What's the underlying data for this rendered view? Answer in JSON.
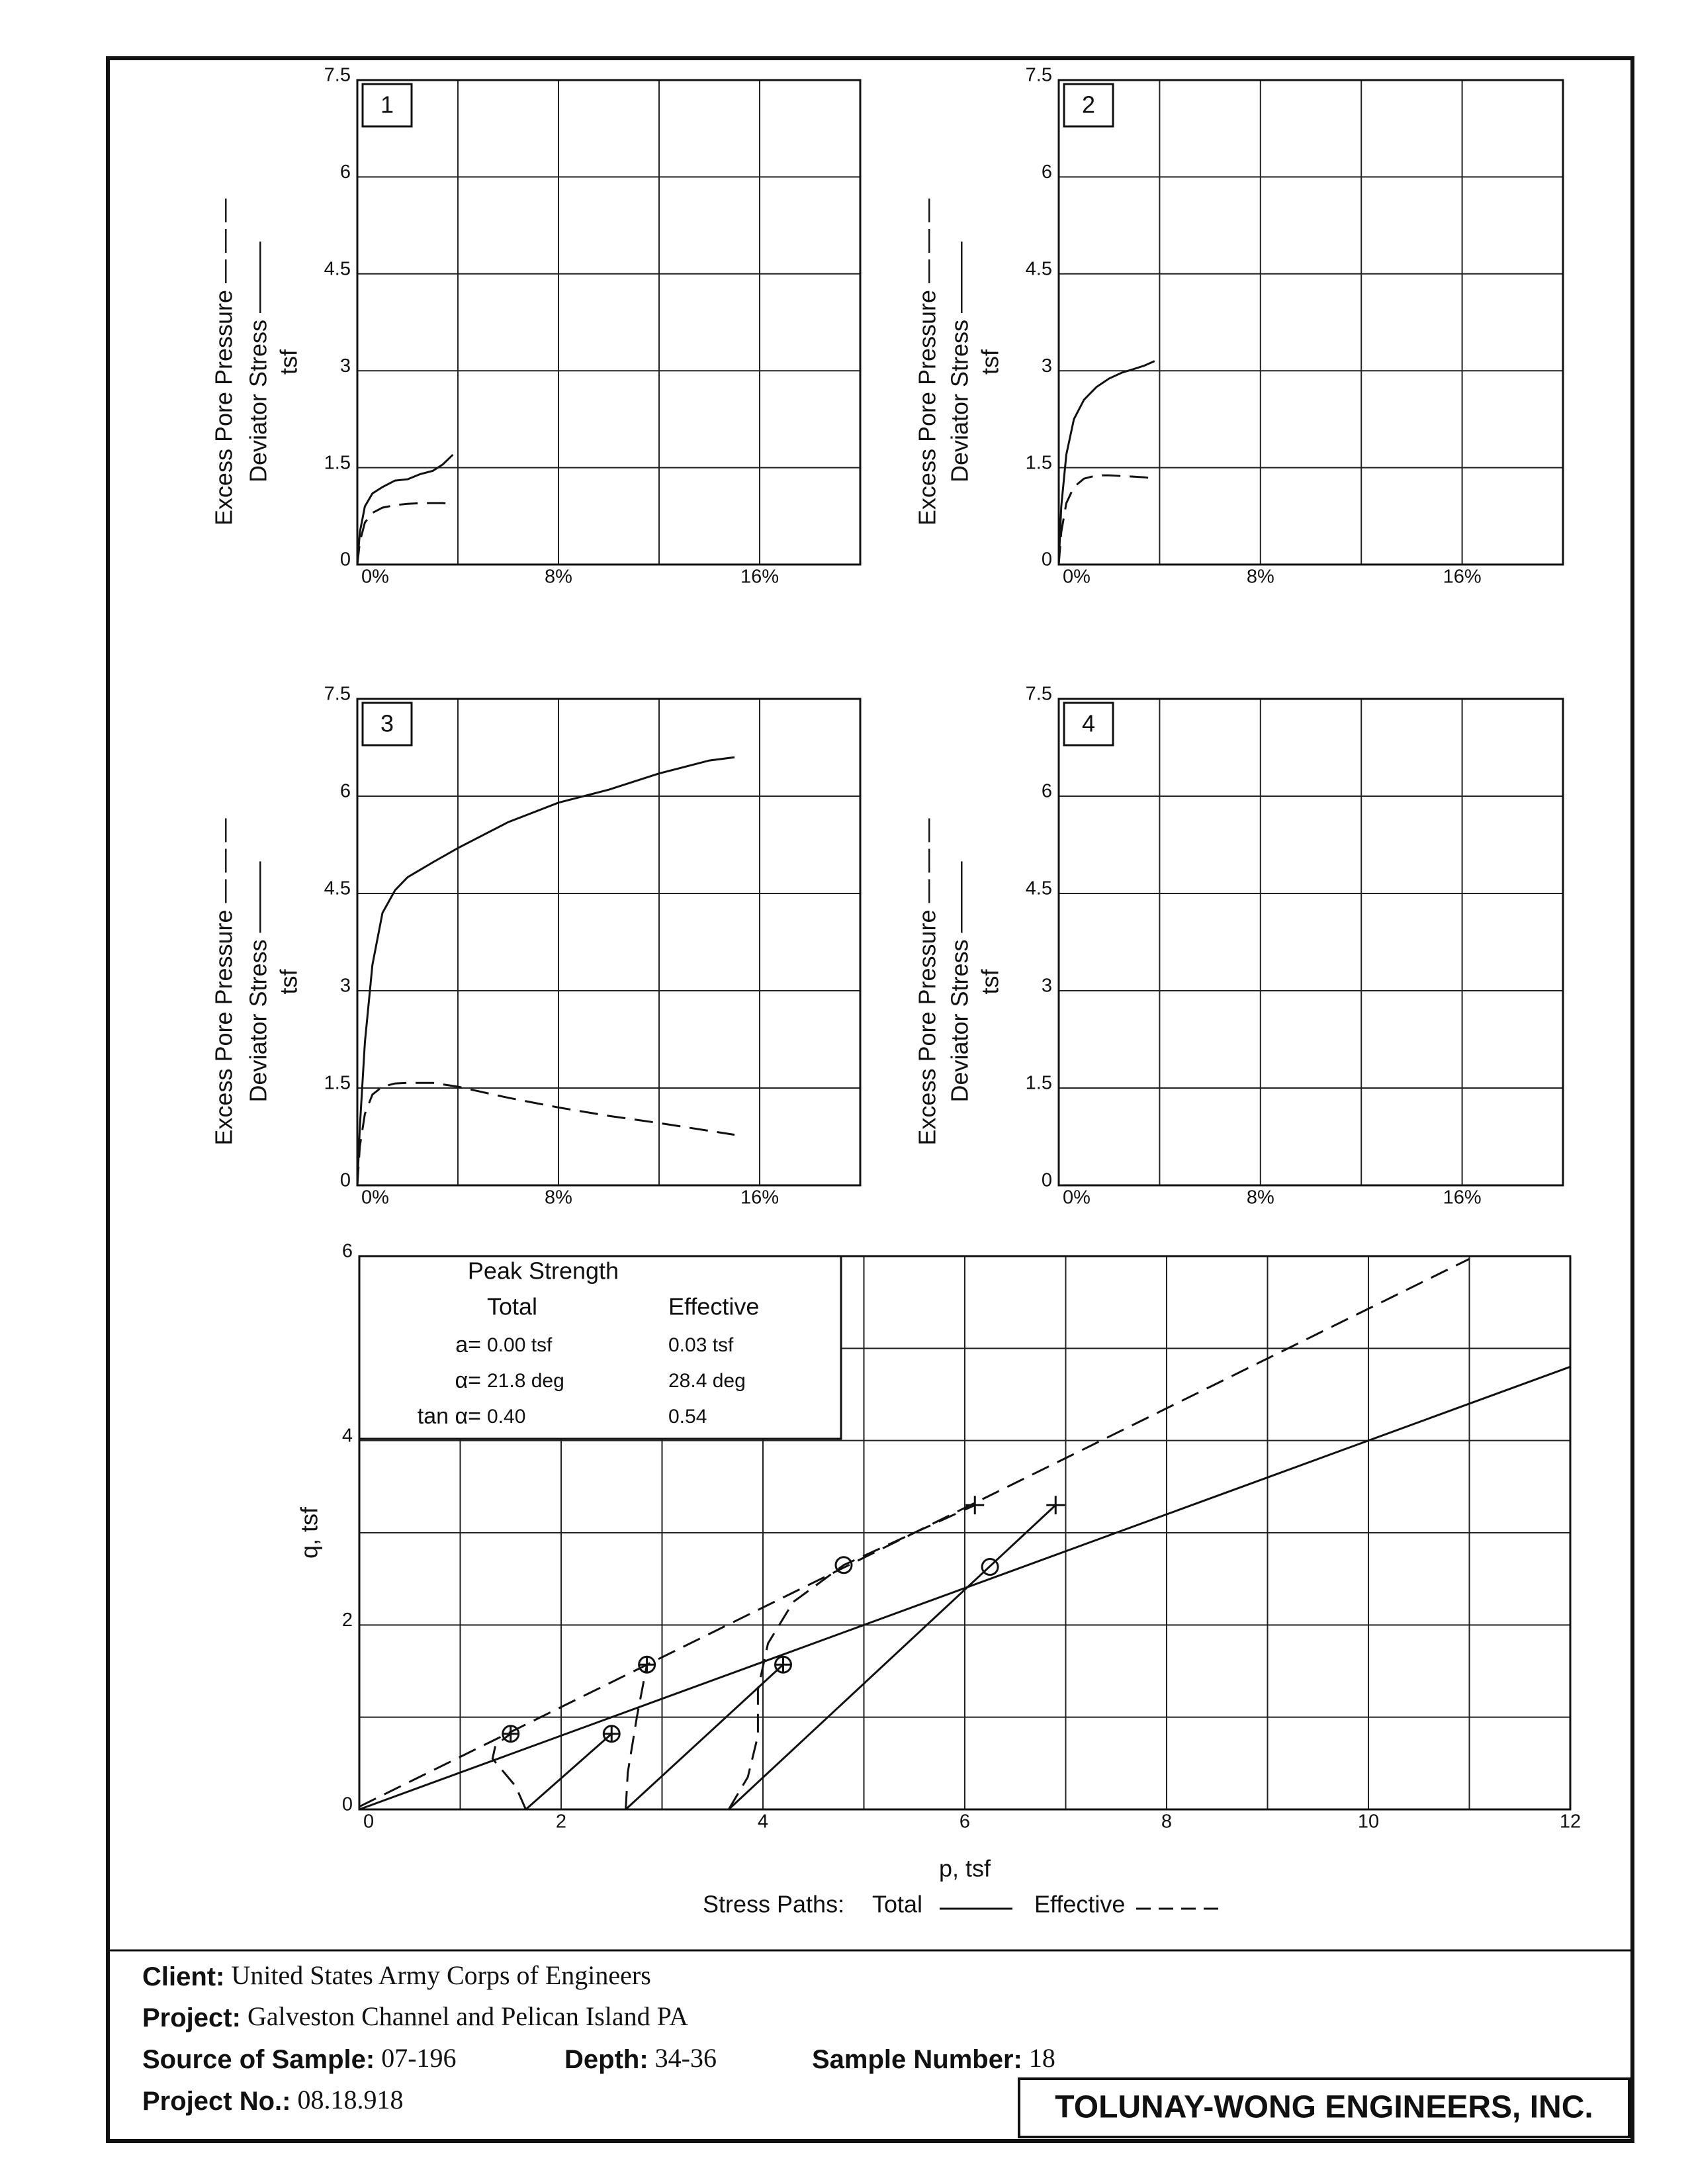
{
  "chart_data": [
    {
      "type": "line",
      "label": "1",
      "y_title": [
        "Excess Pore Pressure — — —",
        "Deviator Stress ———",
        "tsf"
      ],
      "xlim": [
        0,
        20
      ],
      "ylim": [
        0,
        7.5
      ],
      "xticks": [
        {
          "value": 0,
          "label": "0%"
        },
        {
          "value": 8,
          "label": "8%"
        },
        {
          "value": 16,
          "label": "16%"
        }
      ],
      "xgrid": [
        4,
        8,
        12,
        16
      ],
      "yticks": [
        0,
        1.5,
        3,
        4.5,
        6,
        7.5
      ],
      "x": [
        0,
        0.1,
        0.3,
        0.6,
        1,
        1.5,
        2,
        2.5,
        3,
        3.4,
        3.8
      ],
      "series": [
        {
          "style": "solid",
          "values": [
            0,
            0.5,
            0.9,
            1.1,
            1.2,
            1.3,
            1.32,
            1.4,
            1.45,
            1.55,
            1.7
          ]
        },
        {
          "style": "dashed",
          "values": [
            0,
            0.35,
            0.65,
            0.8,
            0.88,
            0.92,
            0.94,
            0.95,
            0.95,
            0.95,
            0.94
          ]
        }
      ]
    },
    {
      "type": "line",
      "label": "2",
      "y_title": [
        "Excess Pore Pressure — — —",
        "Deviator Stress ———",
        "tsf"
      ],
      "xlim": [
        0,
        20
      ],
      "ylim": [
        0,
        7.5
      ],
      "xticks": [
        {
          "value": 0,
          "label": "0%"
        },
        {
          "value": 8,
          "label": "8%"
        },
        {
          "value": 16,
          "label": "16%"
        }
      ],
      "xgrid": [
        4,
        8,
        12,
        16
      ],
      "yticks": [
        0,
        1.5,
        3,
        4.5,
        6,
        7.5
      ],
      "x": [
        0,
        0.1,
        0.3,
        0.6,
        1,
        1.5,
        2,
        2.5,
        3,
        3.4,
        3.8
      ],
      "series": [
        {
          "style": "solid",
          "values": [
            0,
            0.9,
            1.7,
            2.25,
            2.55,
            2.75,
            2.88,
            2.97,
            3.03,
            3.08,
            3.15
          ]
        },
        {
          "style": "dashed",
          "values": [
            0,
            0.5,
            0.95,
            1.2,
            1.33,
            1.38,
            1.38,
            1.37,
            1.36,
            1.35,
            1.33
          ]
        }
      ]
    },
    {
      "type": "line",
      "label": "3",
      "y_title": [
        "Excess Pore Pressure — — —",
        "Deviator Stress ———",
        "tsf"
      ],
      "xlim": [
        0,
        20
      ],
      "ylim": [
        0,
        7.5
      ],
      "xticks": [
        {
          "value": 0,
          "label": "0%"
        },
        {
          "value": 8,
          "label": "8%"
        },
        {
          "value": 16,
          "label": "16%"
        }
      ],
      "xgrid": [
        4,
        8,
        12,
        16
      ],
      "yticks": [
        0,
        1.5,
        3,
        4.5,
        6,
        7.5
      ],
      "x": [
        0,
        0.1,
        0.3,
        0.6,
        1,
        1.5,
        2,
        3,
        4,
        6,
        8,
        10,
        12,
        14,
        15
      ],
      "series": [
        {
          "style": "solid",
          "values": [
            0,
            0.9,
            2.2,
            3.4,
            4.2,
            4.55,
            4.75,
            4.98,
            5.2,
            5.6,
            5.9,
            6.1,
            6.35,
            6.55,
            6.6
          ]
        },
        {
          "style": "dashed",
          "values": [
            0,
            0.6,
            1.1,
            1.4,
            1.52,
            1.57,
            1.58,
            1.58,
            1.52,
            1.35,
            1.2,
            1.07,
            0.96,
            0.84,
            0.78
          ]
        }
      ]
    },
    {
      "type": "line",
      "label": "4",
      "y_title": [
        "Excess Pore Pressure — — —",
        "Deviator Stress ———",
        "tsf"
      ],
      "xlim": [
        0,
        20
      ],
      "ylim": [
        0,
        7.5
      ],
      "xticks": [
        {
          "value": 0,
          "label": "0%"
        },
        {
          "value": 8,
          "label": "8%"
        },
        {
          "value": 16,
          "label": "16%"
        }
      ],
      "xgrid": [
        4,
        8,
        12,
        16
      ],
      "yticks": [
        0,
        1.5,
        3,
        4.5,
        6,
        7.5
      ],
      "x": [],
      "series": []
    },
    {
      "type": "line",
      "y_title": [
        "q, tsf"
      ],
      "x_title": "p, tsf",
      "xlim": [
        0,
        12
      ],
      "ylim": [
        0,
        6
      ],
      "xticks": [
        0,
        2,
        4,
        6,
        8,
        10,
        12
      ],
      "yticks": [
        0,
        2,
        4,
        6
      ],
      "xgrid": [
        1,
        2,
        3,
        4,
        5,
        6,
        7,
        8,
        9,
        10,
        11
      ],
      "ygrid": [
        1,
        2,
        3,
        4,
        5
      ],
      "legend_title": "Stress Paths:",
      "legend": [
        {
          "name": "Total",
          "style": "solid"
        },
        {
          "name": "Effective",
          "style": "dashed"
        }
      ],
      "table": {
        "title": "Peak Strength",
        "columns": [
          "Total",
          "Effective"
        ],
        "rows": [
          {
            "label": "a=",
            "values": [
              "0.00 tsf",
              "0.03 tsf"
            ]
          },
          {
            "label": "α=",
            "values": [
              "21.8 deg",
              "28.4 deg"
            ]
          },
          {
            "label": "tan α=",
            "values": [
              "0.40",
              "0.54"
            ]
          }
        ]
      },
      "series": [
        {
          "style": "solid",
          "x": [
            0,
            12
          ],
          "values": [
            0,
            4.8
          ]
        },
        {
          "style": "dashed",
          "x": [
            0,
            11
          ],
          "values": [
            0.03,
            5.97
          ]
        },
        {
          "style": "solid",
          "x": [
            1.65,
            2.5
          ],
          "values": [
            0,
            0.82
          ]
        },
        {
          "style": "solid",
          "x": [
            2.64,
            4.2
          ],
          "values": [
            0,
            1.57
          ]
        },
        {
          "style": "solid",
          "x": [
            3.66,
            6.9
          ],
          "values": [
            0,
            3.3
          ]
        },
        {
          "style": "dashed",
          "x": [
            1.65,
            1.55,
            1.32,
            1.35,
            1.5
          ],
          "values": [
            0,
            0.25,
            0.55,
            0.7,
            0.82
          ]
        },
        {
          "style": "dashed",
          "x": [
            2.64,
            2.66,
            2.75,
            2.85
          ],
          "values": [
            0,
            0.4,
            1.0,
            1.57
          ]
        },
        {
          "style": "dashed",
          "x": [
            3.66,
            3.85,
            3.95,
            3.95,
            4.05,
            4.3,
            4.8,
            5.5,
            6.1
          ],
          "values": [
            0,
            0.35,
            0.8,
            1.3,
            1.8,
            2.25,
            2.65,
            3.0,
            3.3
          ]
        },
        {
          "marker": "circle-plus",
          "x": [
            1.5,
            2.5,
            2.85,
            4.2
          ],
          "values": [
            0.82,
            0.82,
            1.57,
            1.57
          ]
        },
        {
          "marker": "circle",
          "x": [
            4.8,
            6.25
          ],
          "values": [
            2.65,
            2.63
          ]
        },
        {
          "marker": "plus",
          "x": [
            6.1,
            6.9
          ],
          "values": [
            3.3,
            3.3
          ]
        }
      ]
    }
  ],
  "footer": {
    "client": {
      "label": "Client:",
      "value": "United States Army Corps of Engineers"
    },
    "project": {
      "label": "Project:",
      "value": "Galveston Channel and Pelican Island PA"
    },
    "source": {
      "label": "Source of Sample:",
      "value": "07-196"
    },
    "depth": {
      "label": "Depth:",
      "value": "34-36"
    },
    "sample_number": {
      "label": "Sample Number:",
      "value": "18"
    },
    "project_no": {
      "label": "Project No.:",
      "value": "08.18.918"
    },
    "company": "TOLUNAY-WONG ENGINEERS, INC."
  }
}
